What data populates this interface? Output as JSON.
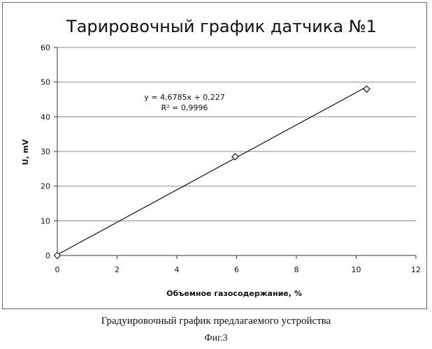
{
  "chart_data": {
    "type": "scatter",
    "title": "Тарировочный график датчика №1",
    "xlabel": "Объемное газосодержание, %",
    "ylabel": "U, mV",
    "xlim": [
      0,
      12
    ],
    "ylim": [
      0,
      60
    ],
    "xticks": [
      "0",
      "2",
      "4",
      "6",
      "8",
      "10",
      "12"
    ],
    "yticks": [
      "0",
      "10",
      "20",
      "30",
      "40",
      "50",
      "60"
    ],
    "grid": true,
    "legend": "none",
    "series": [
      {
        "points": [
          {
            "x": 0,
            "y": 0
          },
          {
            "x": 5.95,
            "y": 28.5
          },
          {
            "x": 10.35,
            "y": 48
          }
        ],
        "marker": "diamond",
        "color": "#1a1a1a"
      }
    ],
    "trendline": {
      "type": "linear",
      "slope": 4.6785,
      "intercept": 0.227,
      "x_range": [
        0,
        10.3
      ],
      "equation": "y = 4,6785x + 0,227",
      "r_squared": "R² = 0,9996"
    }
  },
  "captions": {
    "figure_title": "Градуировочный график  предлагаемого устройства",
    "figure_number": "Фиг.3"
  }
}
